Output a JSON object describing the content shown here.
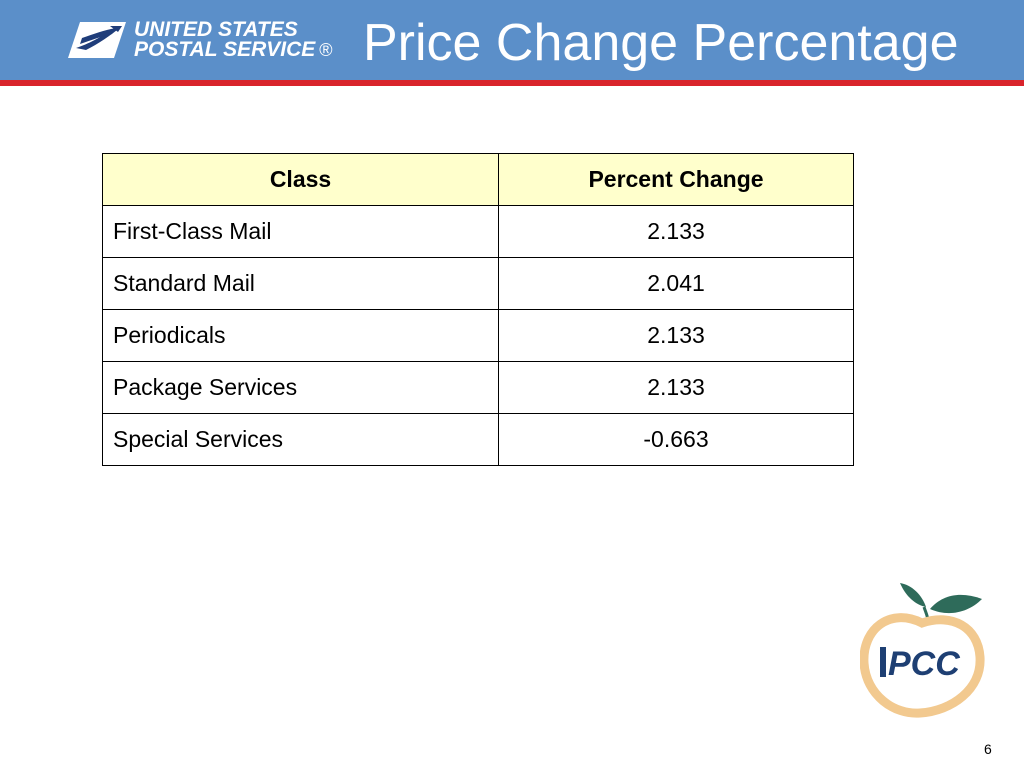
{
  "header": {
    "logo": {
      "line1": "UNITED STATES",
      "line2": "POSTAL SERVICE",
      "reg": "®",
      "icon": "eagle-icon"
    },
    "title": "Price Change Percentage"
  },
  "table": {
    "headers": [
      "Class",
      "Percent Change"
    ],
    "rows": [
      {
        "class": "First-Class Mail",
        "percent": "2.133"
      },
      {
        "class": "Standard Mail",
        "percent": "2.041"
      },
      {
        "class": "Periodicals",
        "percent": "2.133"
      },
      {
        "class": "Package Services",
        "percent": "2.133"
      },
      {
        "class": "Special Services",
        "percent": "-0.663"
      }
    ]
  },
  "pcc_logo": {
    "text": "PCC",
    "icon": "peach-logo-icon"
  },
  "page_number": "6",
  "colors": {
    "header_bg": "#5b8fc9",
    "header_rule": "#d9242b",
    "table_header_bg": "#ffffcc",
    "peach": "#f2c98f",
    "leaf": "#2e6b5a",
    "pcc_blue": "#1e3f73"
  }
}
